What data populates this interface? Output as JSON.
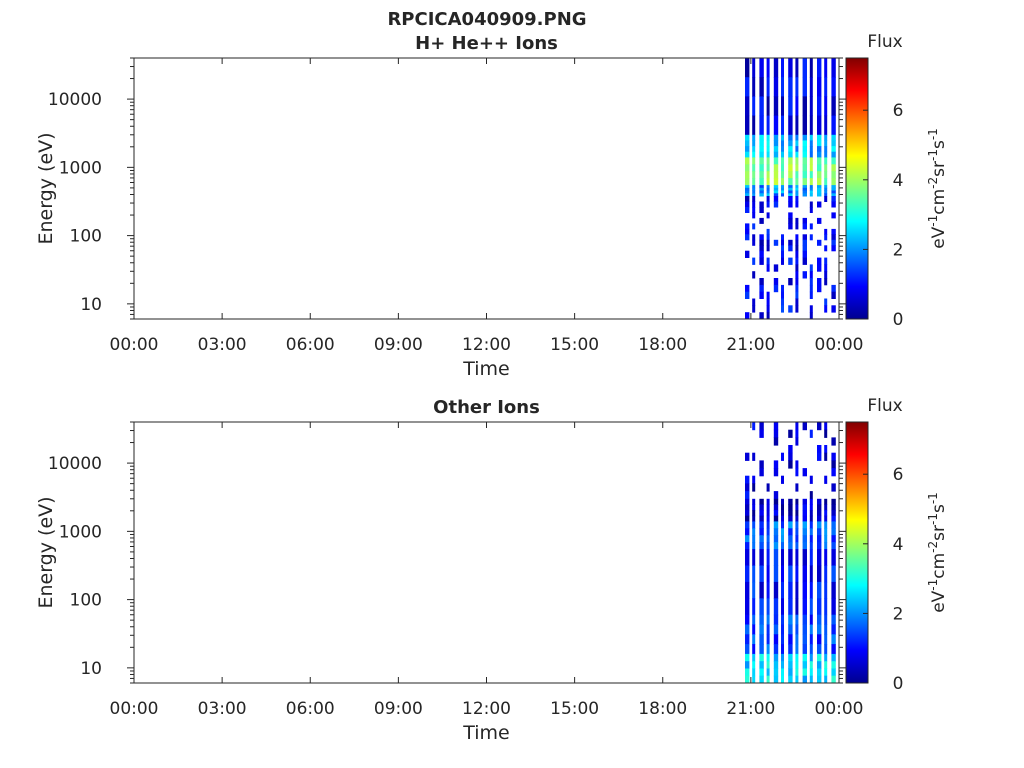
{
  "figure": {
    "title": "RPCICA040909.PNG"
  },
  "colorscale": {
    "stops": [
      "#00008f",
      "#0000ff",
      "#0080ff",
      "#00ffff",
      "#80ff80",
      "#ffff00",
      "#ff8000",
      "#ff0000",
      "#800000"
    ]
  },
  "chart_data": [
    {
      "type": "heatmap",
      "title": "H+ He++ Ions",
      "xlabel": "Time",
      "ylabel": "Energy (eV)",
      "x_tick_labels": [
        "00:00",
        "03:00",
        "06:00",
        "09:00",
        "12:00",
        "15:00",
        "18:00",
        "21:00",
        "00:00"
      ],
      "x_range_hours": [
        0,
        24
      ],
      "y_scale": "log",
      "y_range": [
        6,
        40000
      ],
      "y_ticks": [
        10,
        100,
        1000,
        10000
      ],
      "y_tick_labels": [
        "10",
        "100",
        "1000",
        "10000"
      ],
      "colorbar": {
        "title": "Flux",
        "unit_label": "eV-1cm-2sr-1s-1",
        "range": [
          0,
          7.5
        ],
        "ticks": [
          0,
          2,
          4,
          6
        ],
        "tick_labels": [
          "0",
          "2",
          "4",
          "6"
        ]
      },
      "data_start_hour": 20.8,
      "bands": [
        {
          "e_min": 3000,
          "e_max": 40000,
          "flux": 0.7
        },
        {
          "e_min": 1400,
          "e_max": 3000,
          "flux": 2.3
        },
        {
          "e_min": 550,
          "e_max": 1400,
          "flux": 3.8
        },
        {
          "e_min": 380,
          "e_max": 550,
          "flux": 2.0
        },
        {
          "e_min": 60,
          "e_max": 380,
          "flux": 0.8,
          "sparse": true
        },
        {
          "e_min": 6,
          "e_max": 60,
          "flux": 0.9,
          "sparse": true
        }
      ]
    },
    {
      "type": "heatmap",
      "title": "Other Ions",
      "xlabel": "Time",
      "ylabel": "Energy (eV)",
      "x_tick_labels": [
        "00:00",
        "03:00",
        "06:00",
        "09:00",
        "12:00",
        "15:00",
        "18:00",
        "21:00",
        "00:00"
      ],
      "x_range_hours": [
        0,
        24
      ],
      "y_scale": "log",
      "y_range": [
        6,
        40000
      ],
      "y_ticks": [
        10,
        100,
        1000,
        10000
      ],
      "y_tick_labels": [
        "10",
        "100",
        "1000",
        "10000"
      ],
      "colorbar": {
        "title": "Flux",
        "unit_label": "eV-1cm-2sr-1s-1",
        "range": [
          0,
          7.5
        ],
        "ticks": [
          0,
          2,
          4,
          6
        ],
        "tick_labels": [
          "0",
          "2",
          "4",
          "6"
        ]
      },
      "data_start_hour": 20.8,
      "bands": [
        {
          "e_min": 3000,
          "e_max": 40000,
          "flux": 0.6,
          "sparse": true
        },
        {
          "e_min": 1400,
          "e_max": 3000,
          "flux": 0.5
        },
        {
          "e_min": 550,
          "e_max": 1400,
          "flux": 1.6
        },
        {
          "e_min": 60,
          "e_max": 550,
          "flux": 1.0
        },
        {
          "e_min": 16,
          "e_max": 60,
          "flux": 1.4
        },
        {
          "e_min": 6,
          "e_max": 16,
          "flux": 2.6
        }
      ]
    }
  ]
}
